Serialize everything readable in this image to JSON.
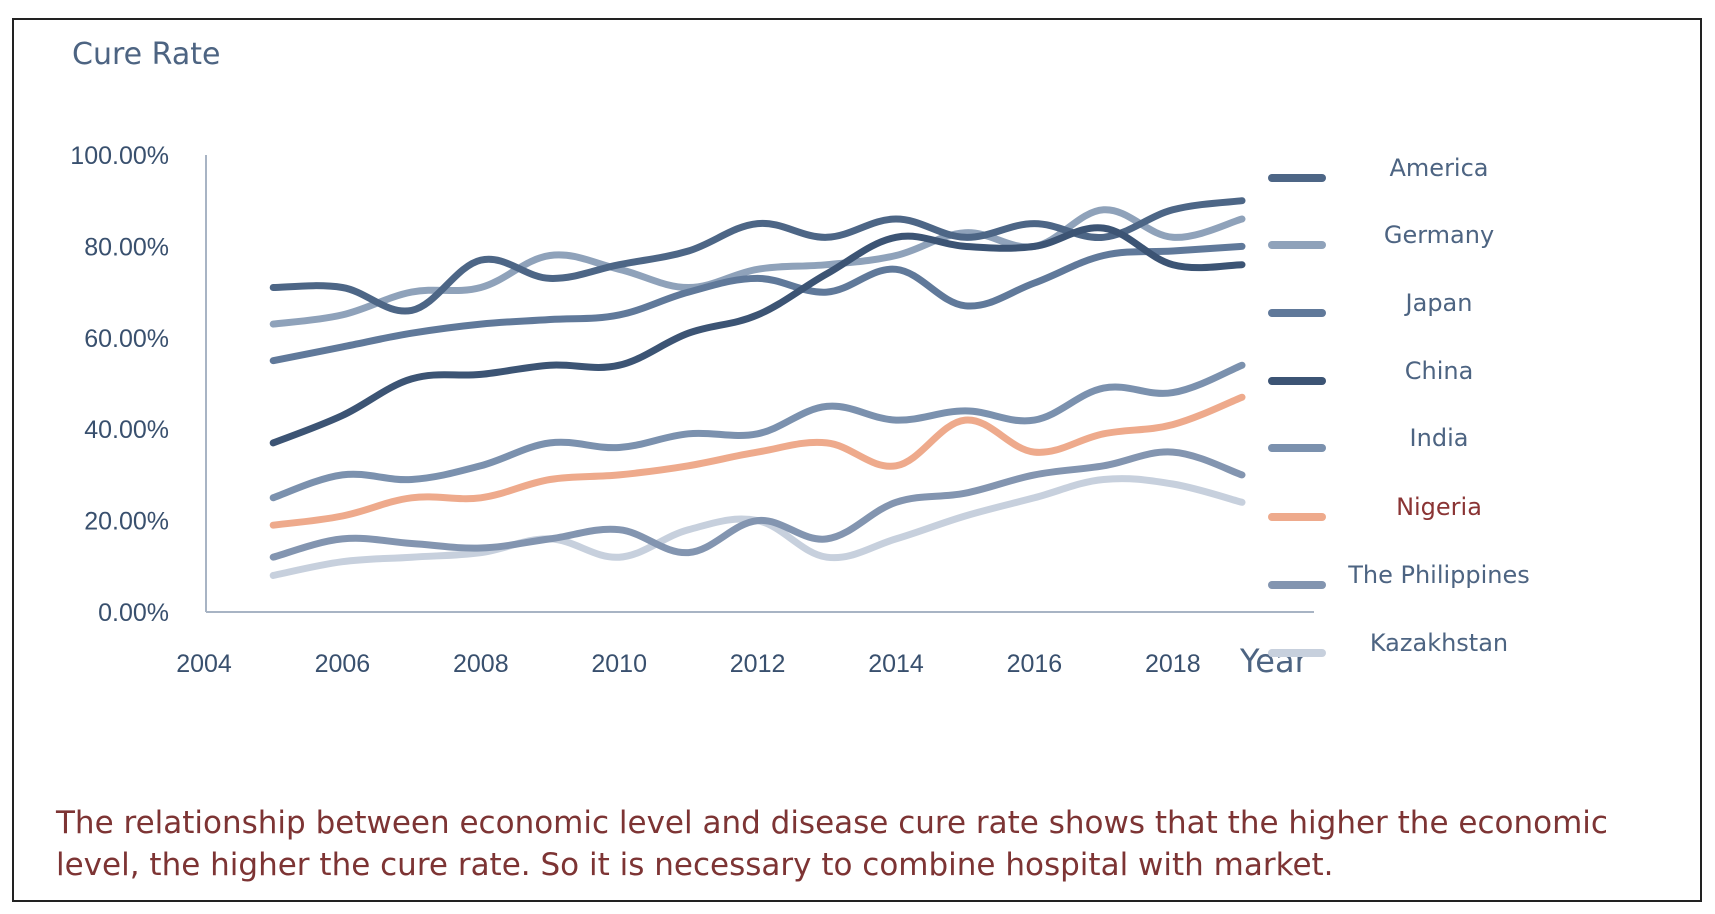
{
  "caption": "The relationship between economic level and disease cure rate shows that the higher the economic level, the higher the cure rate. So it is necessary to combine hospital with market.",
  "chart_data": {
    "type": "line",
    "ylabel": "Cure Rate",
    "xlabel": "Year",
    "xlim": [
      2004,
      2019.5
    ],
    "ylim": [
      0,
      100
    ],
    "x_ticks": [
      "2004",
      "2006",
      "2008",
      "2010",
      "2012",
      "2014",
      "2016",
      "2018"
    ],
    "y_ticks": [
      "0.00%",
      "20.00%",
      "40.00%",
      "60.00%",
      "80.00%",
      "100.00%"
    ],
    "grid": false,
    "legend_position": "right",
    "x": [
      2005,
      2006,
      2007,
      2008,
      2009,
      2010,
      2011,
      2012,
      2013,
      2014,
      2015,
      2016,
      2017,
      2018,
      2019
    ],
    "series": [
      {
        "name": "America",
        "color": "#4d6686",
        "values": [
          71,
          71,
          66,
          77,
          73,
          76,
          79,
          85,
          82,
          86,
          82,
          85,
          82,
          88,
          90
        ]
      },
      {
        "name": "Germany",
        "color": "#8fa2ba",
        "values": [
          63,
          65,
          70,
          71,
          78,
          75,
          71,
          75,
          76,
          78,
          83,
          80,
          88,
          82,
          86
        ]
      },
      {
        "name": "Japan",
        "color": "#60799a",
        "values": [
          55,
          58,
          61,
          63,
          64,
          65,
          70,
          73,
          70,
          75,
          67,
          72,
          78,
          79,
          80
        ]
      },
      {
        "name": "China",
        "color": "#3c5474",
        "values": [
          37,
          43,
          51,
          52,
          54,
          54,
          61,
          65,
          74,
          82,
          80,
          80,
          84,
          76,
          76
        ]
      },
      {
        "name": "India",
        "color": "#7b91ae",
        "values": [
          25,
          30,
          29,
          32,
          37,
          36,
          39,
          39,
          45,
          42,
          44,
          42,
          49,
          48,
          54
        ]
      },
      {
        "name": "Nigeria",
        "color": "#eeaa8c",
        "values": [
          19,
          21,
          25,
          25,
          29,
          30,
          32,
          35,
          37,
          32,
          42,
          35,
          39,
          41,
          47
        ]
      },
      {
        "name": "The Philippines",
        "color": "#8395b0",
        "values": [
          12,
          16,
          15,
          14,
          16,
          18,
          13,
          20,
          16,
          24,
          26,
          30,
          32,
          35,
          30
        ]
      },
      {
        "name": "Kazakhstan",
        "color": "#c7d0dd",
        "values": [
          8,
          11,
          12,
          13,
          16,
          12,
          18,
          20,
          12,
          16,
          21,
          25,
          29,
          28,
          24
        ]
      }
    ],
    "legend_label_colors": {
      "Nigeria": "#8a3434",
      "default": "#4d6482"
    }
  }
}
